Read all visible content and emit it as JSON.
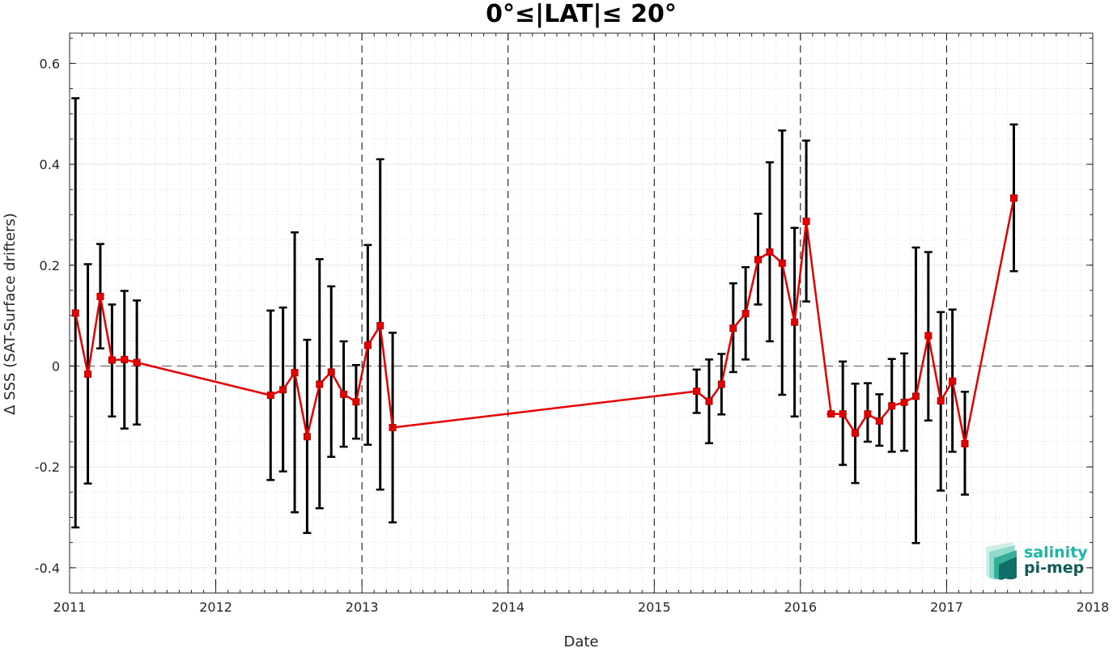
{
  "chart_data": {
    "type": "line",
    "title": "0°≤|LAT|≤ 20°",
    "xlabel": "Date",
    "ylabel": "Δ SSS (SAT-Surface drifters)",
    "xlim": [
      2011,
      2018
    ],
    "ylim": [
      -0.45,
      0.66
    ],
    "x_ticks": [
      "2011",
      "2012",
      "2013",
      "2014",
      "2015",
      "2016",
      "2017",
      "2018"
    ],
    "y_ticks": [
      {
        "value": -0.4,
        "label": "-0.4"
      },
      {
        "value": -0.2,
        "label": "-0.2"
      },
      {
        "value": 0,
        "label": "0"
      },
      {
        "value": 0.2,
        "label": "0.2"
      },
      {
        "value": 0.4,
        "label": "0.4"
      },
      {
        "value": 0.6,
        "label": "0.6"
      }
    ],
    "vertical_dashed_lines": [
      2012,
      2013,
      2014,
      2015,
      2016,
      2017
    ],
    "zero_line": 0,
    "grid": true,
    "line_color": "#e60000",
    "errorbar_color": "#000000",
    "series": [
      {
        "x": [
          2011.04,
          2011.125,
          2011.21,
          2011.29,
          2011.375,
          2011.46,
          2012.375,
          2012.46,
          2012.54,
          2012.625,
          2012.71,
          2012.79,
          2012.875,
          2012.96,
          2013.04,
          2013.125,
          2013.21,
          2015.29,
          2015.375,
          2015.46,
          2015.54,
          2015.625,
          2015.71,
          2015.79,
          2015.875,
          2015.96,
          2016.04,
          2016.21,
          2016.29,
          2016.375,
          2016.46,
          2016.54,
          2016.625,
          2016.71,
          2016.79,
          2016.875,
          2016.96,
          2017.04,
          2017.125,
          2017.46
        ],
        "y": [
          0.105,
          -0.016,
          0.138,
          0.012,
          0.013,
          0.007,
          -0.058,
          -0.047,
          -0.013,
          -0.14,
          -0.036,
          -0.012,
          -0.056,
          -0.071,
          0.041,
          0.08,
          -0.122,
          -0.05,
          -0.07,
          -0.036,
          0.075,
          0.104,
          0.211,
          0.226,
          0.204,
          0.087,
          0.287,
          -0.095,
          -0.095,
          -0.133,
          -0.095,
          -0.109,
          -0.079,
          -0.072,
          -0.06,
          0.06,
          -0.069,
          -0.03,
          -0.154,
          0.333
        ],
        "err_low": [
          -0.32,
          -0.233,
          0.035,
          -0.1,
          -0.124,
          -0.116,
          -0.226,
          -0.209,
          -0.29,
          -0.331,
          -0.282,
          -0.18,
          -0.16,
          -0.144,
          -0.156,
          -0.245,
          -0.31,
          -0.093,
          -0.153,
          -0.096,
          -0.012,
          0.013,
          0.122,
          0.049,
          -0.057,
          -0.1,
          0.128,
          -0.095,
          -0.196,
          -0.232,
          -0.15,
          -0.158,
          -0.17,
          -0.168,
          -0.351,
          -0.108,
          -0.247,
          -0.17,
          -0.255,
          0.188
        ],
        "err_high": [
          0.531,
          0.202,
          0.242,
          0.122,
          0.149,
          0.13,
          0.11,
          0.116,
          0.265,
          0.052,
          0.212,
          0.158,
          0.049,
          0.002,
          0.24,
          0.41,
          0.066,
          -0.007,
          0.013,
          0.024,
          0.164,
          0.196,
          0.302,
          0.404,
          0.467,
          0.274,
          0.447,
          -0.095,
          0.009,
          -0.035,
          -0.034,
          -0.056,
          0.014,
          0.025,
          0.235,
          0.226,
          0.107,
          0.112,
          -0.051,
          0.479
        ]
      }
    ]
  },
  "logo": {
    "line1": "salinity",
    "line2": "pi-mep",
    "color1": "#1fb5a4",
    "color2": "#0f5c5a"
  }
}
